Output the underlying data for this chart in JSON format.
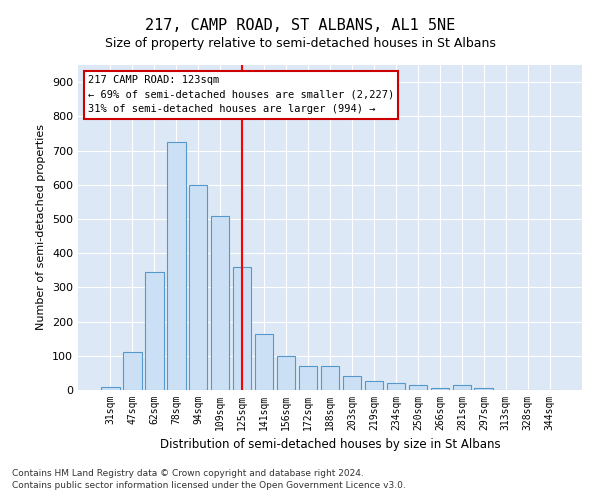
{
  "title": "217, CAMP ROAD, ST ALBANS, AL1 5NE",
  "subtitle": "Size of property relative to semi-detached houses in St Albans",
  "xlabel": "Distribution of semi-detached houses by size in St Albans",
  "ylabel": "Number of semi-detached properties",
  "footnote1": "Contains HM Land Registry data © Crown copyright and database right 2024.",
  "footnote2": "Contains public sector information licensed under the Open Government Licence v3.0.",
  "annotation_title": "217 CAMP ROAD: 123sqm",
  "annotation_line1": "← 69% of semi-detached houses are smaller (2,227)",
  "annotation_line2": "31% of semi-detached houses are larger (994) →",
  "bar_labels": [
    "31sqm",
    "47sqm",
    "62sqm",
    "78sqm",
    "94sqm",
    "109sqm",
    "125sqm",
    "141sqm",
    "156sqm",
    "172sqm",
    "188sqm",
    "203sqm",
    "219sqm",
    "234sqm",
    "250sqm",
    "266sqm",
    "281sqm",
    "297sqm",
    "313sqm",
    "328sqm",
    "344sqm"
  ],
  "bar_values": [
    10,
    110,
    345,
    725,
    600,
    510,
    360,
    165,
    100,
    70,
    70,
    40,
    25,
    20,
    15,
    5,
    15,
    5,
    0,
    0,
    0
  ],
  "bar_color": "#cce0f5",
  "bar_edge_color": "#5599cc",
  "highlight_index": 6,
  "highlight_color": "#ff0000",
  "ylim": [
    0,
    950
  ],
  "yticks": [
    0,
    100,
    200,
    300,
    400,
    500,
    600,
    700,
    800,
    900
  ],
  "background_color": "#dce8f5",
  "annotation_box_color": "#ffffff",
  "annotation_box_edge": "#cc0000",
  "title_fontsize": 11,
  "subtitle_fontsize": 9
}
